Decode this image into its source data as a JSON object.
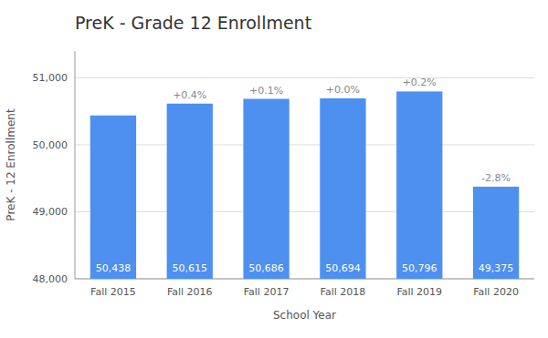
{
  "chart_data": {
    "type": "bar",
    "title": "PreK - Grade 12 Enrollment",
    "x_label": "School Year",
    "y_label": "PreK - 12 Enrollment",
    "categories": [
      "Fall 2015",
      "Fall 2016",
      "Fall 2017",
      "Fall 2018",
      "Fall 2019",
      "Fall 2020"
    ],
    "values": [
      50438,
      50615,
      50686,
      50694,
      50796,
      49375
    ],
    "value_labels": [
      "50,438",
      "50,615",
      "50,686",
      "50,694",
      "50,796",
      "49,375"
    ],
    "data_labels": true,
    "annotations": [
      {
        "x": "Fall 2016",
        "text": "+0.4%"
      },
      {
        "x": "Fall 2017",
        "text": "+0.1%"
      },
      {
        "x": "Fall 2018",
        "text": "+0.0%"
      },
      {
        "x": "Fall 2019",
        "text": "+0.2%"
      },
      {
        "x": "Fall 2020",
        "text": "-2.8%"
      }
    ],
    "color": "#4d90f0",
    "ylim": [
      48000,
      51400
    ],
    "yticks": [
      {
        "value": 48000,
        "label": "48,000"
      },
      {
        "value": 49000,
        "label": "49,000"
      },
      {
        "value": 50000,
        "label": "50,000"
      },
      {
        "value": 51000,
        "label": "51,000"
      }
    ],
    "grid": true
  }
}
